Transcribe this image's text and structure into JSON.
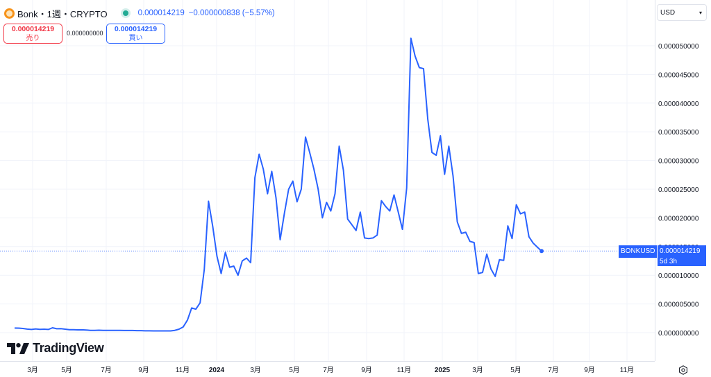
{
  "header": {
    "symbol_title": "Bonk・1週・CRYPTO",
    "last_price": "0.000014219",
    "change": "−0.000000838 (−5.57%)"
  },
  "trade": {
    "sell_price": "0.000014219",
    "sell_label": "売り",
    "spread": "0.000000000",
    "buy_price": "0.000014219",
    "buy_label": "買い"
  },
  "currency": {
    "selected": "USD"
  },
  "price_label": {
    "symbol": "BONKUSD",
    "value": "0.000014219",
    "countdown": "5d 3h"
  },
  "branding": {
    "logo_text": "TradingView"
  },
  "colors": {
    "line": "#2962ff",
    "sell": "#f23645",
    "buy": "#2962ff",
    "live_dot": "#22ab94"
  },
  "icons": {
    "settings": "gear-icon",
    "currency_dropdown": "chevron-down-icon",
    "coin": "bonk-coin-icon"
  },
  "chart_data": {
    "type": "line",
    "series": [
      {
        "values": [
          8e-07,
          7.8e-07,
          7.2e-07,
          6.2e-07,
          5.5e-07,
          6.5e-07,
          5.8e-07,
          6e-07,
          5.5e-07,
          8.5e-07,
          6.8e-07,
          7e-07,
          6e-07,
          5.2e-07,
          5.2e-07,
          4.8e-07,
          5e-07,
          4.5e-07,
          4e-07,
          4e-07,
          4.2e-07,
          4e-07,
          4e-07,
          4e-07,
          4e-07,
          4e-07,
          3.8e-07,
          3.8e-07,
          3.8e-07,
          3.5e-07,
          3.5e-07,
          3.2e-07,
          3.2e-07,
          3e-07,
          3e-07,
          3e-07,
          3e-07,
          3e-07,
          4e-07,
          6e-07,
          1e-06,
          2.2e-06,
          4.3e-06,
          4.1e-06,
          5.2e-06,
          1.1e-05,
          2.29e-05,
          1.85e-05,
          1.33e-05,
          1.03e-05,
          1.4e-05,
          1.14e-05,
          1.16e-05,
          1e-05,
          1.25e-05,
          1.3e-05,
          1.22e-05,
          2.7e-05,
          3.11e-05,
          2.85e-05,
          2.42e-05,
          2.81e-05,
          2.35e-05,
          1.62e-05,
          2.08e-05,
          2.5e-05,
          2.64e-05,
          2.28e-05,
          2.5e-05,
          3.41e-05,
          3.14e-05,
          2.85e-05,
          2.5e-05,
          2e-05,
          2.27e-05,
          2.12e-05,
          2.42e-05,
          3.25e-05,
          2.83e-05,
          1.98e-05,
          1.88e-05,
          1.78e-05,
          2.1e-05,
          1.65e-05,
          1.64e-05,
          1.65e-05,
          1.7e-05,
          2.3e-05,
          2.2e-05,
          2.12e-05,
          2.4e-05,
          2.1e-05,
          1.8e-05,
          2.52e-05,
          5.13e-05,
          4.82e-05,
          4.62e-05,
          4.6e-05,
          3.72e-05,
          3.14e-05,
          3.09e-05,
          3.43e-05,
          2.76e-05,
          3.25e-05,
          2.73e-05,
          1.93e-05,
          1.73e-05,
          1.75e-05,
          1.59e-05,
          1.57e-05,
          1.03e-05,
          1.05e-05,
          1.37e-05,
          1.11e-05,
          9.8e-06,
          1.27e-05,
          1.26e-05,
          1.86e-05,
          1.64e-05,
          2.23e-05,
          2.07e-05,
          2.1e-05,
          1.67e-05,
          1.56e-05,
          1.49e-05,
          1.422e-05
        ]
      }
    ],
    "last_value": 1.4219e-05,
    "y_ticks": [
      "0.000000000",
      "0.000005000",
      "0.000010000",
      "0.000015000",
      "0.000020000",
      "0.000025000",
      "0.000030000",
      "0.000035000",
      "0.000040000",
      "0.000045000",
      "0.000050000"
    ],
    "y_tick_values": [
      0,
      5e-06,
      1e-05,
      1.5e-05,
      2e-05,
      2.5e-05,
      3e-05,
      3.5e-05,
      4e-05,
      4.5e-05,
      5e-05
    ],
    "x_ticks": [
      {
        "label": "3月",
        "bold": false
      },
      {
        "label": "5月",
        "bold": false
      },
      {
        "label": "7月",
        "bold": false
      },
      {
        "label": "9月",
        "bold": false
      },
      {
        "label": "11月",
        "bold": false
      },
      {
        "label": "2024",
        "bold": true
      },
      {
        "label": "3月",
        "bold": false
      },
      {
        "label": "5月",
        "bold": false
      },
      {
        "label": "7月",
        "bold": false
      },
      {
        "label": "9月",
        "bold": false
      },
      {
        "label": "11月",
        "bold": false
      },
      {
        "label": "2025",
        "bold": true
      },
      {
        "label": "3月",
        "bold": false
      },
      {
        "label": "5月",
        "bold": false
      },
      {
        "label": "7月",
        "bold": false
      },
      {
        "label": "9月",
        "bold": false
      },
      {
        "label": "11月",
        "bold": false
      }
    ],
    "grid": true,
    "legend": "top-left"
  }
}
